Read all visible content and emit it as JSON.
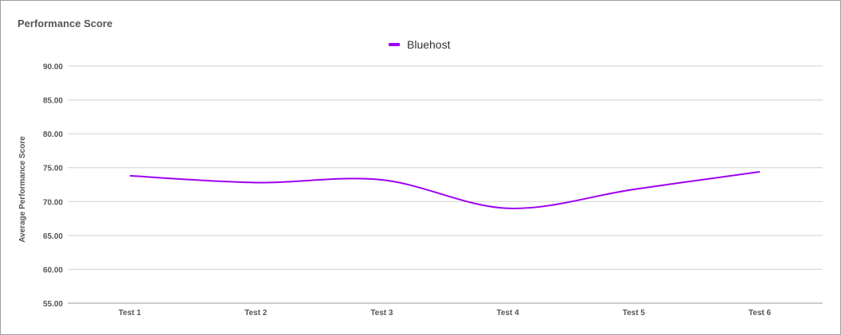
{
  "chart_data": {
    "type": "line",
    "title": "Performance Score",
    "ylabel": "Average Performance Score",
    "xlabel": "",
    "categories": [
      "Test 1",
      "Test 2",
      "Test 3",
      "Test 4",
      "Test 5",
      "Test 6"
    ],
    "series": [
      {
        "name": "Bluehost",
        "values": [
          73.8,
          72.8,
          73.2,
          69.0,
          71.8,
          74.4
        ],
        "color": "#9d00f0"
      }
    ],
    "ylim": [
      55,
      90
    ],
    "yticks": [
      "90.00",
      "85.00",
      "80.00",
      "75.00",
      "70.00",
      "65.00",
      "60.00",
      "55.00"
    ],
    "grid": true,
    "legend_position": "top-center",
    "smooth": true
  }
}
